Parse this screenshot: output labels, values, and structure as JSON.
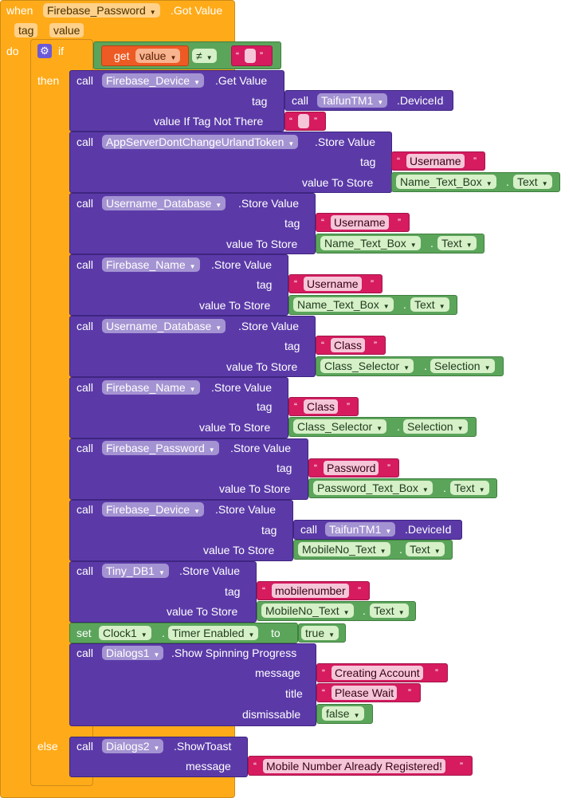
{
  "event": {
    "when": "when",
    "component": "Firebase_Password",
    "name": ".Got Value",
    "params": [
      "tag",
      "value"
    ],
    "do": "do"
  },
  "if_block": {
    "if": "if",
    "then": "then",
    "else": "else",
    "get": "get",
    "var": "value",
    "op": "≠",
    "empty": ""
  },
  "calls": [
    {
      "call": "call",
      "component": "Firebase_Device",
      "method": ".Get Value",
      "slot1": "tag",
      "slot2": "value If Tag Not There",
      "inner_call": "call",
      "inner_component": "TaifunTM1",
      "inner_method": ".DeviceId",
      "default": ""
    },
    {
      "call": "call",
      "component": "AppServerDontChangeUrlandToken",
      "method": ".Store Value",
      "tag_label": "tag",
      "value_label": "value To Store",
      "tag": "Username",
      "value_component": "Name_Text_Box",
      "value_prop": "Text"
    },
    {
      "call": "call",
      "component": "Username_Database",
      "method": ".Store Value",
      "tag_label": "tag",
      "value_label": "value To Store",
      "tag": "Username",
      "value_component": "Name_Text_Box",
      "value_prop": "Text"
    },
    {
      "call": "call",
      "component": "Firebase_Name",
      "method": ".Store Value",
      "tag_label": "tag",
      "value_label": "value To Store",
      "tag": "Username",
      "value_component": "Name_Text_Box",
      "value_prop": "Text"
    },
    {
      "call": "call",
      "component": "Username_Database",
      "method": ".Store Value",
      "tag_label": "tag",
      "value_label": "value To Store",
      "tag": "Class",
      "value_component": "Class_Selector",
      "value_prop": "Selection"
    },
    {
      "call": "call",
      "component": "Firebase_Name",
      "method": ".Store Value",
      "tag_label": "tag",
      "value_label": "value To Store",
      "tag": "Class",
      "value_component": "Class_Selector",
      "value_prop": "Selection"
    },
    {
      "call": "call",
      "component": "Firebase_Password",
      "method": ".Store Value",
      "tag_label": "tag",
      "value_label": "value To Store",
      "tag": "Password",
      "value_component": "Password_Text_Box",
      "value_prop": "Text"
    },
    {
      "call": "call",
      "component": "Firebase_Device",
      "method": ".Store Value",
      "tag_label": "tag",
      "value_label": "value To Store",
      "inner_call": "call",
      "inner_component": "TaifunTM1",
      "inner_method": ".DeviceId",
      "value_component": "MobileNo_Text",
      "value_prop": "Text"
    },
    {
      "call": "call",
      "component": "Tiny_DB1",
      "method": ".Store Value",
      "tag_label": "tag",
      "value_label": "value To Store",
      "tag": "mobilenumber",
      "value_component": "MobileNo_Text",
      "value_prop": "Text"
    }
  ],
  "set_block": {
    "set": "set",
    "component": "Clock1",
    "prop": "Timer Enabled",
    "to": "to",
    "value": "true"
  },
  "spinner": {
    "call": "call",
    "component": "Dialogs1",
    "method": ".Show Spinning Progress",
    "message_label": "message",
    "title_label": "title",
    "dismissable_label": "dismissable",
    "message": "Creating Account",
    "title": "Please Wait",
    "dismissable": "false"
  },
  "toast": {
    "call": "call",
    "component": "Dialogs2",
    "method": ".ShowToast",
    "message_label": "message",
    "message": "Mobile Number Already Registered!"
  },
  "glyphs": {
    "dropdown": "▼",
    "open_quote": "“",
    "close_quote": "”",
    "dot": ".",
    "gear": "⚙"
  },
  "colors": {
    "event": "#ffab19",
    "procedure": "#5b3aa8",
    "logic": "#5ba55b",
    "text": "#d61b5f",
    "variable": "#ee5a24"
  }
}
